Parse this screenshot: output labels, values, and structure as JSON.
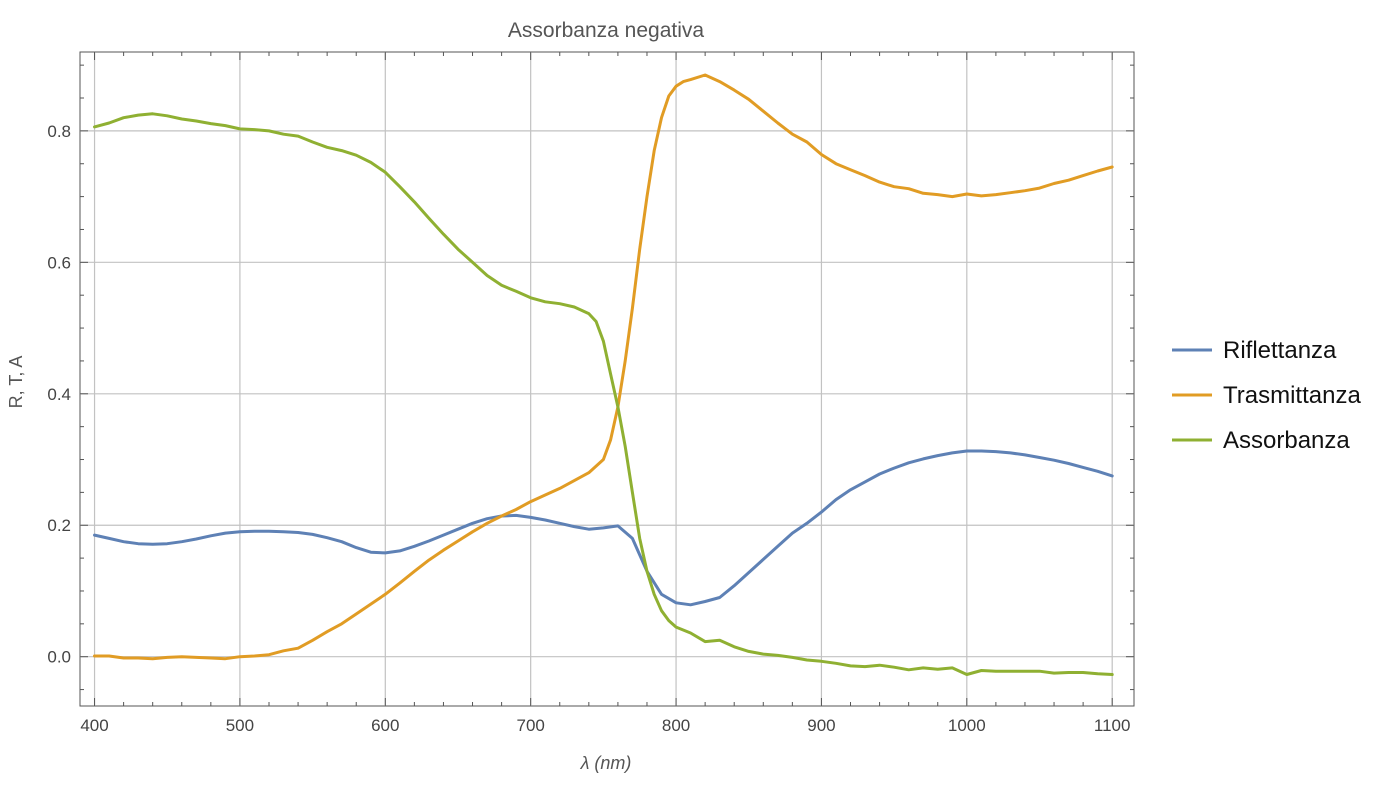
{
  "chart_data": {
    "type": "line",
    "title": "Assorbanza negativa",
    "xlabel": "λ (nm)",
    "ylabel": "R, T, A",
    "xlim": [
      390,
      1115
    ],
    "ylim": [
      -0.075,
      0.92
    ],
    "xticks": [
      400,
      500,
      600,
      700,
      800,
      900,
      1000,
      1100
    ],
    "xtick_labels": [
      "400",
      "500",
      "600",
      "700",
      "800",
      "900",
      "1000",
      "1100"
    ],
    "yticks": [
      0.0,
      0.2,
      0.4,
      0.6,
      0.8
    ],
    "ytick_labels": [
      "0.0",
      "0.2",
      "0.4",
      "0.6",
      "0.8"
    ],
    "grid": true,
    "legend_position": "right",
    "series": [
      {
        "name": "Riflettanza",
        "color": "#5e81b5",
        "x": [
          400,
          410,
          420,
          430,
          440,
          450,
          460,
          470,
          480,
          490,
          500,
          510,
          520,
          530,
          540,
          550,
          560,
          570,
          580,
          590,
          600,
          610,
          620,
          630,
          640,
          650,
          660,
          670,
          680,
          690,
          700,
          710,
          720,
          730,
          740,
          750,
          760,
          770,
          780,
          790,
          800,
          810,
          820,
          830,
          840,
          850,
          860,
          870,
          880,
          890,
          900,
          910,
          920,
          930,
          940,
          950,
          960,
          970,
          980,
          990,
          1000,
          1010,
          1020,
          1030,
          1040,
          1050,
          1060,
          1070,
          1080,
          1090,
          1100
        ],
        "values": [
          0.185,
          0.18,
          0.175,
          0.172,
          0.171,
          0.172,
          0.175,
          0.179,
          0.184,
          0.188,
          0.19,
          0.191,
          0.191,
          0.19,
          0.189,
          0.186,
          0.181,
          0.175,
          0.166,
          0.159,
          0.158,
          0.161,
          0.168,
          0.176,
          0.185,
          0.194,
          0.203,
          0.21,
          0.214,
          0.215,
          0.212,
          0.208,
          0.203,
          0.198,
          0.194,
          0.196,
          0.199,
          0.18,
          0.13,
          0.095,
          0.082,
          0.079,
          0.084,
          0.09,
          0.108,
          0.128,
          0.148,
          0.168,
          0.188,
          0.203,
          0.22,
          0.239,
          0.254,
          0.266,
          0.278,
          0.287,
          0.295,
          0.301,
          0.306,
          0.31,
          0.313,
          0.313,
          0.312,
          0.31,
          0.307,
          0.303,
          0.299,
          0.294,
          0.288,
          0.282,
          0.275
        ]
      },
      {
        "name": "Trasmittanza",
        "color": "#e19c24",
        "x": [
          400,
          410,
          420,
          430,
          440,
          450,
          460,
          470,
          480,
          490,
          500,
          510,
          520,
          530,
          540,
          550,
          560,
          570,
          580,
          590,
          600,
          610,
          620,
          630,
          640,
          650,
          660,
          670,
          680,
          690,
          700,
          710,
          720,
          730,
          740,
          750,
          755,
          760,
          765,
          770,
          775,
          780,
          785,
          790,
          795,
          800,
          805,
          810,
          820,
          830,
          840,
          850,
          860,
          870,
          880,
          890,
          900,
          910,
          920,
          930,
          940,
          950,
          960,
          970,
          980,
          990,
          1000,
          1010,
          1020,
          1030,
          1040,
          1050,
          1060,
          1070,
          1080,
          1090,
          1100
        ],
        "values": [
          0.001,
          0.001,
          -0.002,
          -0.002,
          -0.003,
          -0.001,
          0.0,
          -0.001,
          -0.002,
          -0.003,
          0.0,
          0.001,
          0.003,
          0.009,
          0.013,
          0.025,
          0.038,
          0.05,
          0.065,
          0.08,
          0.095,
          0.112,
          0.13,
          0.147,
          0.162,
          0.176,
          0.19,
          0.203,
          0.214,
          0.224,
          0.236,
          0.246,
          0.256,
          0.268,
          0.28,
          0.3,
          0.33,
          0.38,
          0.45,
          0.53,
          0.62,
          0.7,
          0.77,
          0.82,
          0.853,
          0.868,
          0.875,
          0.878,
          0.885,
          0.875,
          0.862,
          0.848,
          0.83,
          0.812,
          0.795,
          0.783,
          0.764,
          0.75,
          0.741,
          0.732,
          0.722,
          0.715,
          0.712,
          0.705,
          0.703,
          0.7,
          0.704,
          0.701,
          0.703,
          0.706,
          0.709,
          0.713,
          0.72,
          0.725,
          0.732,
          0.739,
          0.745
        ]
      },
      {
        "name": "Assorbanza",
        "color": "#8fb032",
        "x": [
          400,
          410,
          420,
          430,
          440,
          450,
          460,
          470,
          480,
          490,
          500,
          510,
          520,
          530,
          540,
          550,
          560,
          570,
          580,
          590,
          600,
          610,
          620,
          630,
          640,
          650,
          660,
          670,
          680,
          690,
          700,
          710,
          720,
          730,
          740,
          745,
          750,
          755,
          760,
          765,
          770,
          775,
          780,
          785,
          790,
          795,
          800,
          810,
          820,
          830,
          840,
          850,
          860,
          870,
          880,
          890,
          900,
          910,
          920,
          930,
          940,
          950,
          960,
          970,
          980,
          990,
          1000,
          1010,
          1020,
          1030,
          1040,
          1050,
          1060,
          1070,
          1080,
          1090,
          1100
        ],
        "values": [
          0.806,
          0.812,
          0.82,
          0.824,
          0.826,
          0.823,
          0.818,
          0.815,
          0.811,
          0.808,
          0.803,
          0.802,
          0.8,
          0.795,
          0.792,
          0.783,
          0.775,
          0.77,
          0.763,
          0.752,
          0.737,
          0.715,
          0.692,
          0.667,
          0.643,
          0.62,
          0.6,
          0.58,
          0.565,
          0.556,
          0.546,
          0.54,
          0.537,
          0.532,
          0.522,
          0.51,
          0.48,
          0.43,
          0.38,
          0.32,
          0.25,
          0.18,
          0.13,
          0.095,
          0.07,
          0.055,
          0.045,
          0.036,
          0.023,
          0.025,
          0.015,
          0.008,
          0.004,
          0.002,
          -0.001,
          -0.005,
          -0.007,
          -0.01,
          -0.014,
          -0.015,
          -0.013,
          -0.016,
          -0.02,
          -0.017,
          -0.019,
          -0.017,
          -0.027,
          -0.021,
          -0.022,
          -0.022,
          -0.022,
          -0.022,
          -0.025,
          -0.024,
          -0.024,
          -0.026,
          -0.027
        ]
      }
    ]
  }
}
